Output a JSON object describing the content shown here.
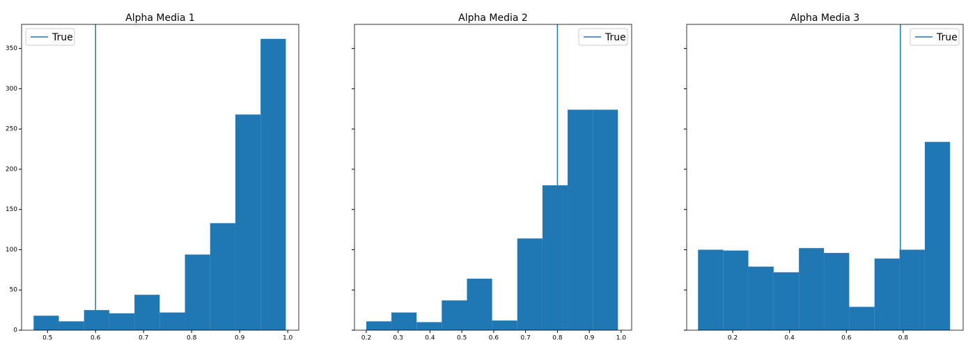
{
  "chart_data": [
    {
      "type": "histogram",
      "title": "Alpha Media 1",
      "bins": [
        0.471,
        0.5235,
        0.576,
        0.6285,
        0.681,
        0.7335,
        0.786,
        0.8385,
        0.891,
        0.9435,
        0.996
      ],
      "counts": [
        18,
        11,
        25,
        21,
        44,
        22,
        94,
        133,
        268,
        362
      ],
      "color": "#1f77b4",
      "vline": {
        "name": "True",
        "x": 0.6,
        "color": "#1f77b4"
      },
      "xlim": [
        0.446,
        1.023
      ],
      "xticks": [
        0.5,
        0.6,
        0.7,
        0.8,
        0.9,
        {
          "value": 1,
          "label": "1.0"
        }
      ],
      "ylim": [
        0,
        380
      ],
      "yticks": [
        0,
        50,
        100,
        150,
        200,
        250,
        300,
        350
      ],
      "show_ytick_labels": true,
      "legend": "upper left"
    },
    {
      "type": "histogram",
      "title": "Alpha Media 2",
      "bins": [
        0.2,
        0.279,
        0.358,
        0.437,
        0.516,
        0.595,
        0.674,
        0.753,
        0.832,
        0.911,
        0.99
      ],
      "counts": [
        11,
        22,
        10,
        37,
        64,
        12,
        114,
        180,
        274,
        274
      ],
      "color": "#1f77b4",
      "vline": {
        "name": "True",
        "x": 0.8,
        "color": "#1f77b4"
      },
      "xlim": [
        0.163,
        1.033
      ],
      "xticks": [
        0.2,
        0.3,
        0.4,
        0.5,
        0.6,
        0.7,
        0.8,
        0.9,
        {
          "value": 1,
          "label": "1.0"
        }
      ],
      "ylim": [
        0,
        380
      ],
      "yticks": [
        0,
        50,
        100,
        150,
        200,
        250,
        300,
        350
      ],
      "show_ytick_labels": false,
      "legend": "upper right"
    },
    {
      "type": "histogram",
      "title": "Alpha Media 3",
      "bins": [
        0.078,
        0.167,
        0.255,
        0.344,
        0.433,
        0.521,
        0.61,
        0.699,
        0.787,
        0.876,
        0.965
      ],
      "counts": [
        100,
        99,
        79,
        72,
        102,
        96,
        29,
        89,
        100,
        234
      ],
      "color": "#1f77b4",
      "vline": {
        "name": "True",
        "x": 0.79,
        "color": "#1f77b4"
      },
      "xlim": [
        0.038,
        1.011
      ],
      "xticks": [
        0.2,
        0.4,
        0.6,
        0.8
      ],
      "ylim": [
        0,
        380
      ],
      "yticks": [
        0,
        50,
        100,
        150,
        200,
        250,
        300,
        350
      ],
      "show_ytick_labels": false,
      "legend": "upper right"
    }
  ]
}
